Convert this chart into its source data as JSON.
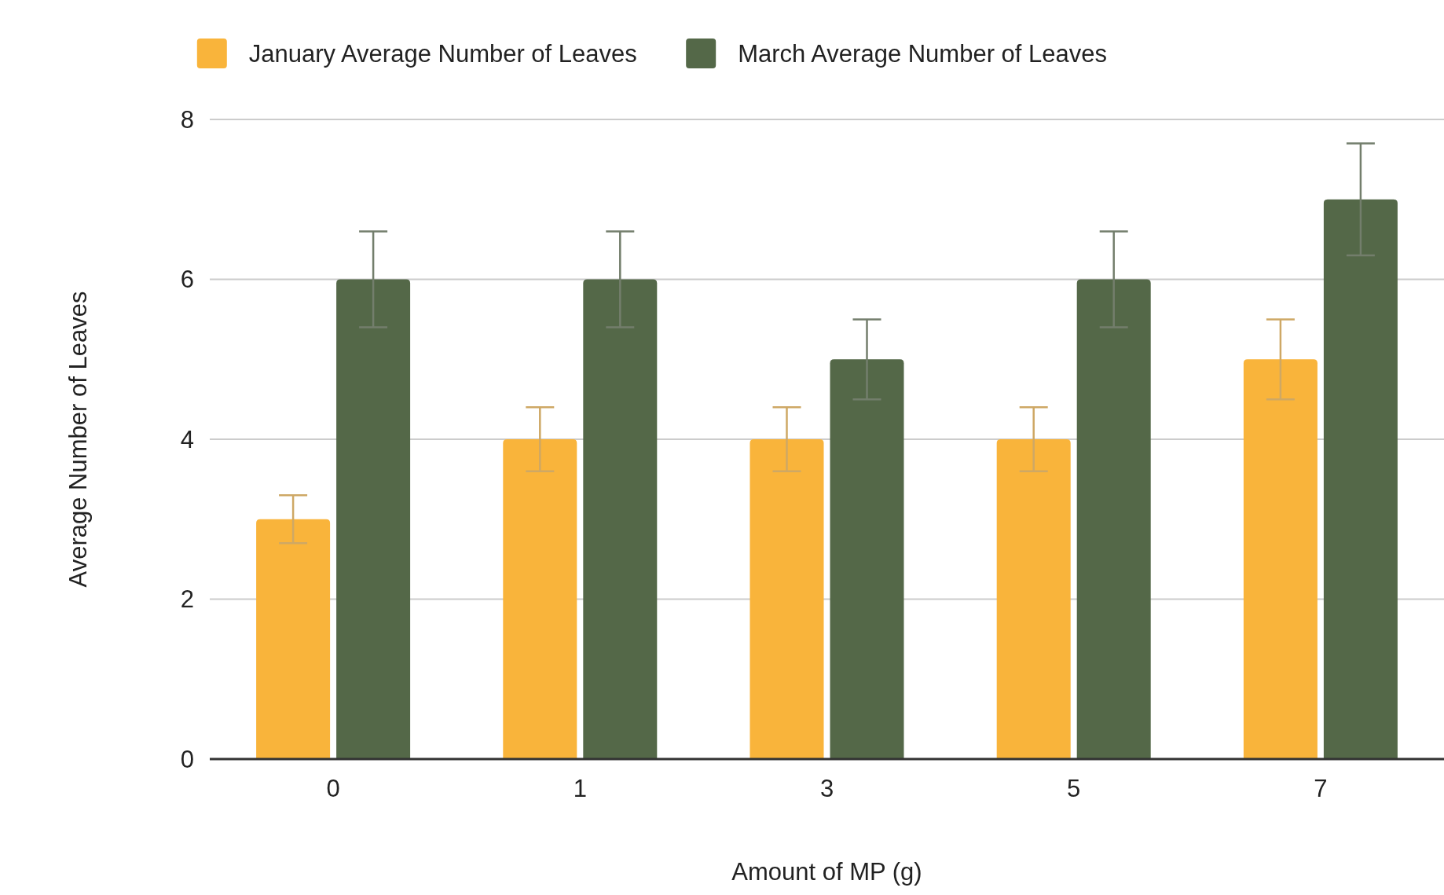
{
  "chart_data": {
    "type": "bar",
    "xlabel": "Amount of MP (g)",
    "ylabel": "Average Number of Leaves",
    "categories": [
      "0",
      "1",
      "3",
      "5",
      "7"
    ],
    "series": [
      {
        "name": "January Average Number of Leaves",
        "color": "#f9b43b",
        "values": [
          3,
          4,
          4,
          4,
          5
        ],
        "errors": [
          0.3,
          0.4,
          0.4,
          0.4,
          0.5
        ]
      },
      {
        "name": "March Average Number of Leaves",
        "color": "#546848",
        "values": [
          6,
          6,
          5,
          6,
          7
        ],
        "errors": [
          0.6,
          0.6,
          0.5,
          0.6,
          0.7
        ]
      }
    ],
    "ylim": [
      0,
      8
    ],
    "yticks": [
      0,
      2,
      4,
      6,
      8
    ],
    "grid": "y",
    "legend": "top"
  }
}
